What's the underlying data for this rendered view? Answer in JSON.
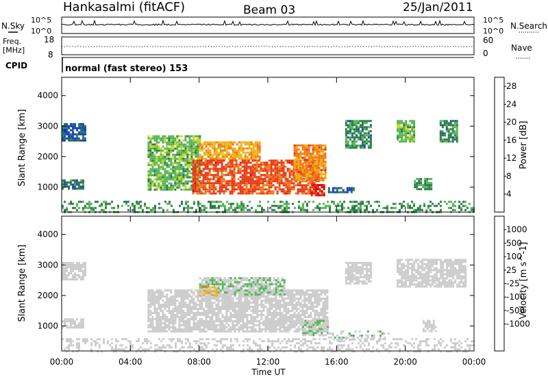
{
  "header": {
    "station": "Hankasalmi (fitACF)",
    "beam": "Beam 03",
    "date": "25/Jan/2011"
  },
  "noise_panel": {
    "left_label": "N.Sky",
    "right_label": "N.Search",
    "right_style": "dotted",
    "left_ticks": [
      "10^5",
      "10^0"
    ],
    "right_ticks": [
      "10^5",
      "10^0"
    ]
  },
  "freq_panel": {
    "left_label_1": "Freq.",
    "left_label_2": "[MHz]",
    "left_ticks": [
      "18",
      "8"
    ],
    "right_label": "Nave",
    "right_style": "dotted",
    "right_ticks": [
      "60",
      "0"
    ]
  },
  "cpid_panel": {
    "label": "CPID",
    "text": "normal (fast stereo) 153"
  },
  "x_axis": {
    "label": "Time UT",
    "ticks": [
      "00:00",
      "04:00",
      "08:00",
      "12:00",
      "16:00",
      "20:00",
      "00:00"
    ]
  },
  "colors": {
    "power_scale": [
      "#0018e8",
      "#1848b8",
      "#2c7a4c",
      "#58b458",
      "#c8d820",
      "#f2b018",
      "#f07818",
      "#e63818",
      "#e60000"
    ],
    "velocity_scale": [
      "#0018e8",
      "#1848b8",
      "#2c7a4c",
      "#58b458",
      "#cccccc",
      "#cccccc",
      "#f2b018",
      "#f07818",
      "#e63818",
      "#e60000"
    ]
  },
  "chart_data": [
    {
      "type": "heatmap",
      "title": "",
      "xlabel": "",
      "ylabel": "Slant Range [km]",
      "x_range_hours_ut": [
        0,
        24
      ],
      "ylim": [
        180,
        4600
      ],
      "yticks": [
        "1000",
        "2000",
        "3000",
        "4000"
      ],
      "colorbar": {
        "label": "Power [dB]",
        "ticks": [
          "4",
          "8",
          "12",
          "16",
          "20",
          "24",
          "28"
        ],
        "range": [
          0,
          30
        ]
      },
      "regions": [
        {
          "t0": 0.0,
          "t1": 1.2,
          "r0": 950,
          "r1": 1250,
          "value": 8
        },
        {
          "t0": 0.0,
          "t1": 1.4,
          "r0": 2550,
          "r1": 3100,
          "value": 6
        },
        {
          "t0": 5.0,
          "t1": 8.0,
          "r0": 900,
          "r1": 2700,
          "value": 12
        },
        {
          "t0": 8.0,
          "t1": 11.5,
          "r0": 1900,
          "r1": 2500,
          "value": 19
        },
        {
          "t0": 7.6,
          "t1": 15.0,
          "r0": 800,
          "r1": 1900,
          "value": 24
        },
        {
          "t0": 13.5,
          "t1": 15.3,
          "r0": 1200,
          "r1": 2400,
          "value": 21
        },
        {
          "t0": 14.5,
          "t1": 15.3,
          "r0": 750,
          "r1": 1100,
          "value": 27
        },
        {
          "t0": 15.5,
          "t1": 17.0,
          "r0": 800,
          "r1": 1000,
          "value": 6
        },
        {
          "t0": 16.5,
          "t1": 18.0,
          "r0": 2300,
          "r1": 3200,
          "value": 9
        },
        {
          "t0": 19.5,
          "t1": 20.5,
          "r0": 2500,
          "r1": 3200,
          "value": 12
        },
        {
          "t0": 20.5,
          "t1": 21.5,
          "r0": 900,
          "r1": 1300,
          "value": 10
        },
        {
          "t0": 22.0,
          "t1": 23.0,
          "r0": 2500,
          "r1": 3200,
          "value": 9
        },
        {
          "t0": 0.0,
          "t1": 24.0,
          "r0": 180,
          "r1": 550,
          "value": 10
        }
      ]
    },
    {
      "type": "heatmap",
      "title": "",
      "xlabel": "Time UT",
      "ylabel": "Slant Range [km]",
      "x_range_hours_ut": [
        0,
        24
      ],
      "ylim": [
        180,
        4600
      ],
      "yticks": [
        "1000",
        "2000",
        "3000",
        "4000"
      ],
      "colorbar": {
        "label": "Velocity [m s^-1]",
        "ticks": [
          "1000",
          "500",
          "100",
          "25",
          "-25",
          "-100",
          "-500",
          "-1000"
        ],
        "range": [
          -1200,
          1200
        ]
      },
      "regions": [
        {
          "t0": 0.0,
          "t1": 1.2,
          "r0": 950,
          "r1": 1250,
          "value": 0
        },
        {
          "t0": 0.0,
          "t1": 1.4,
          "r0": 2550,
          "r1": 3100,
          "value": 0
        },
        {
          "t0": 5.0,
          "t1": 15.5,
          "r0": 800,
          "r1": 2200,
          "value": 0
        },
        {
          "t0": 8.0,
          "t1": 13.0,
          "r0": 2000,
          "r1": 2600,
          "value": -200
        },
        {
          "t0": 8.0,
          "t1": 9.0,
          "r0": 2000,
          "r1": 2300,
          "value": 300
        },
        {
          "t0": 14.0,
          "t1": 15.5,
          "r0": 700,
          "r1": 1200,
          "value": -150
        },
        {
          "t0": 15.5,
          "t1": 19.0,
          "r0": 550,
          "r1": 850,
          "value": -150
        },
        {
          "t0": 16.5,
          "t1": 18.0,
          "r0": 2400,
          "r1": 3100,
          "value": 0
        },
        {
          "t0": 19.5,
          "t1": 23.5,
          "r0": 2300,
          "r1": 3200,
          "value": 0
        },
        {
          "t0": 21.0,
          "t1": 21.8,
          "r0": 800,
          "r1": 1200,
          "value": 0
        },
        {
          "t0": 0.0,
          "t1": 24.0,
          "r0": 180,
          "r1": 600,
          "value": 0
        }
      ]
    }
  ]
}
